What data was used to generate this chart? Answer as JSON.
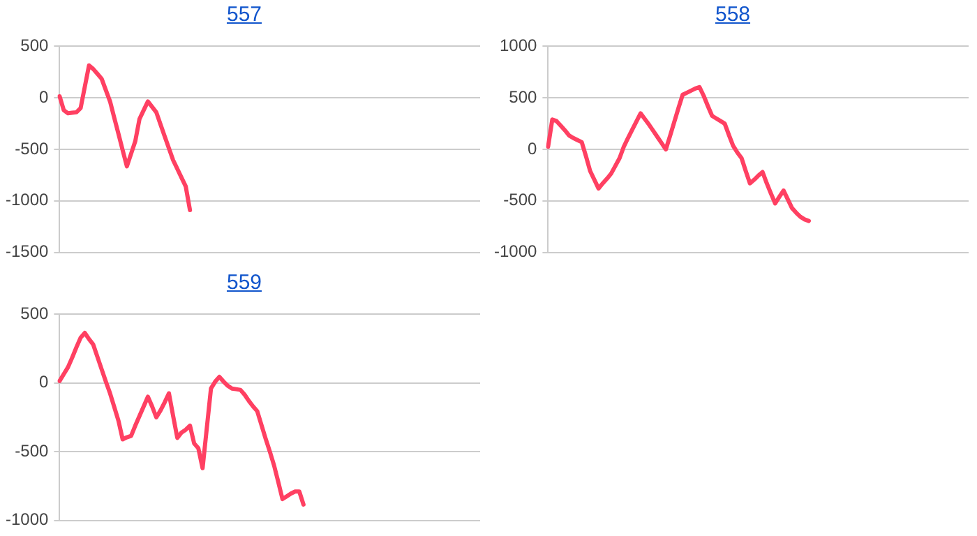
{
  "chart_data": [
    {
      "type": "line",
      "title": "557",
      "categories": [
        null,
        null,
        null,
        null,
        null,
        null,
        null,
        null,
        null,
        null,
        null,
        null,
        null,
        null,
        null,
        null,
        null,
        null,
        null,
        null,
        null,
        null,
        null,
        null,
        null,
        null,
        null,
        null,
        null,
        null,
        null,
        null,
        null,
        null,
        null,
        null,
        null,
        null,
        null,
        null,
        null,
        null,
        null,
        null,
        null,
        null,
        null,
        null,
        null,
        null,
        null,
        null,
        null,
        null,
        null,
        null,
        null,
        null,
        null,
        null,
        null,
        null,
        null,
        null,
        null,
        null,
        null,
        null,
        null,
        null,
        null,
        null,
        null,
        null,
        null,
        null,
        null,
        null,
        null,
        null,
        null,
        null,
        null,
        null,
        null,
        null,
        null,
        null,
        null,
        null,
        null,
        null,
        null,
        null,
        null,
        null,
        null,
        null,
        null,
        null,
        null
      ],
      "ylim": [
        -1500,
        500
      ],
      "yticks": [
        -1500,
        -1000,
        -500,
        0,
        500
      ],
      "grid": "y",
      "tick_labels": "y",
      "legend": false,
      "marker": "none",
      "line_style": "solid",
      "series": [
        {
          "color": "#ff4062",
          "values": [
            15,
            -120,
            -150,
            -145,
            -140,
            -100,
            108,
            315,
            280,
            233,
            185,
            75,
            -35,
            -193,
            -350,
            -508,
            -665,
            -543,
            -420,
            -205,
            -120,
            -35,
            -88,
            -140,
            -258,
            -375,
            -490,
            -605,
            -690,
            -775,
            -860,
            -1090,
            null,
            null,
            null,
            null,
            null,
            null,
            null,
            null,
            null,
            null,
            null,
            null,
            null,
            null,
            null,
            null,
            null,
            null,
            null,
            null,
            null,
            null,
            null,
            null,
            null,
            null,
            null,
            null,
            null,
            null,
            null,
            null,
            null,
            null,
            null,
            null,
            null,
            null,
            null,
            null,
            null,
            null,
            null,
            null,
            null,
            null,
            null,
            null,
            null,
            null,
            null,
            null,
            null,
            null,
            null,
            null,
            null,
            null,
            null,
            null,
            null,
            null,
            null,
            null,
            null,
            null,
            null,
            null,
            null
          ]
        }
      ]
    },
    {
      "type": "line",
      "title": "558",
      "categories": [
        null,
        null,
        null,
        null,
        null,
        null,
        null,
        null,
        null,
        null,
        null,
        null,
        null,
        null,
        null,
        null,
        null,
        null,
        null,
        null,
        null,
        null,
        null,
        null,
        null,
        null,
        null,
        null,
        null,
        null,
        null,
        null,
        null,
        null,
        null,
        null,
        null,
        null,
        null,
        null,
        null,
        null,
        null,
        null,
        null,
        null,
        null,
        null,
        null,
        null,
        null,
        null,
        null,
        null,
        null,
        null,
        null,
        null,
        null,
        null,
        null,
        null,
        null,
        null,
        null,
        null,
        null,
        null,
        null,
        null,
        null,
        null,
        null,
        null,
        null,
        null,
        null,
        null,
        null,
        null,
        null,
        null,
        null,
        null,
        null,
        null,
        null,
        null,
        null,
        null,
        null,
        null,
        null,
        null,
        null,
        null,
        null,
        null,
        null,
        null,
        null
      ],
      "ylim": [
        -1000,
        1000
      ],
      "yticks": [
        -1000,
        -500,
        0,
        500,
        1000
      ],
      "grid": "y",
      "tick_labels": "y",
      "legend": false,
      "marker": "none",
      "line_style": "solid",
      "series": [
        {
          "color": "#ff4062",
          "values": [
            25,
            290,
            275,
            230,
            185,
            135,
            110,
            90,
            70,
            -65,
            -210,
            -295,
            -380,
            -330,
            -285,
            -235,
            -160,
            -85,
            25,
            110,
            190,
            270,
            350,
            295,
            240,
            180,
            120,
            60,
            0,
            130,
            265,
            400,
            530,
            550,
            570,
            590,
            605,
            520,
            420,
            325,
            300,
            275,
            250,
            140,
            35,
            -30,
            -85,
            -210,
            -330,
            -295,
            -255,
            -220,
            -330,
            -430,
            -525,
            -460,
            -400,
            -485,
            -570,
            -615,
            -655,
            -680,
            -695,
            null,
            null,
            null,
            null,
            null,
            null,
            null,
            null,
            null,
            null,
            null,
            null,
            null,
            null,
            null,
            null,
            null,
            null,
            null,
            null,
            null,
            null,
            null,
            null,
            null,
            null,
            null,
            null,
            null,
            null,
            null,
            null,
            null,
            null,
            null,
            null,
            null,
            null
          ]
        }
      ]
    },
    {
      "type": "line",
      "title": "559",
      "categories": [
        null,
        null,
        null,
        null,
        null,
        null,
        null,
        null,
        null,
        null,
        null,
        null,
        null,
        null,
        null,
        null,
        null,
        null,
        null,
        null,
        null,
        null,
        null,
        null,
        null,
        null,
        null,
        null,
        null,
        null,
        null,
        null,
        null,
        null,
        null,
        null,
        null,
        null,
        null,
        null,
        null,
        null,
        null,
        null,
        null,
        null,
        null,
        null,
        null,
        null,
        null,
        null,
        null,
        null,
        null,
        null,
        null,
        null,
        null,
        null,
        null,
        null,
        null,
        null,
        null,
        null,
        null,
        null,
        null,
        null,
        null,
        null,
        null,
        null,
        null,
        null,
        null,
        null,
        null,
        null,
        null,
        null,
        null,
        null,
        null,
        null,
        null,
        null,
        null,
        null,
        null,
        null,
        null,
        null,
        null,
        null,
        null,
        null,
        null,
        null,
        null
      ],
      "ylim": [
        -1000,
        500
      ],
      "yticks": [
        -1000,
        -500,
        0,
        500
      ],
      "grid": "y",
      "tick_labels": "y",
      "legend": false,
      "marker": "none",
      "line_style": "solid",
      "series": [
        {
          "color": "#ff4062",
          "values": [
            15,
            65,
            115,
            185,
            260,
            330,
            365,
            320,
            280,
            190,
            100,
            10,
            -75,
            -175,
            -275,
            -410,
            -395,
            -385,
            -310,
            -240,
            -170,
            -100,
            -170,
            -250,
            -200,
            -140,
            -75,
            -240,
            -400,
            -360,
            -340,
            -310,
            -440,
            -475,
            -620,
            -330,
            -40,
            10,
            45,
            10,
            -20,
            -40,
            -45,
            -50,
            -85,
            -130,
            -170,
            -205,
            -305,
            -405,
            -500,
            -600,
            -720,
            -845,
            -825,
            -805,
            -790,
            -790,
            -885,
            null,
            null,
            null,
            null,
            null,
            null,
            null,
            null,
            null,
            null,
            null,
            null,
            null,
            null,
            null,
            null,
            null,
            null,
            null,
            null,
            null,
            null,
            null,
            null,
            null,
            null,
            null,
            null,
            null,
            null,
            null,
            null,
            null,
            null,
            null,
            null,
            null,
            null,
            null,
            null,
            null,
            null
          ]
        }
      ]
    }
  ]
}
